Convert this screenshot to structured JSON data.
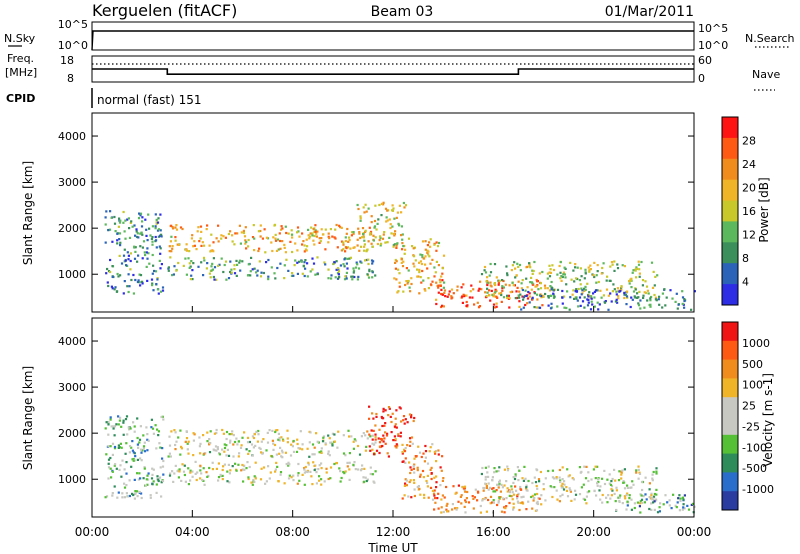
{
  "header": {
    "station": "Kerguelen (fitACF)",
    "beam": "Beam 03",
    "date": "01/Mar/2011"
  },
  "strips": {
    "nsky_label": "N.Sky",
    "nsky_tick_top": "10^5",
    "nsky_tick_bottom": "10^0",
    "nsearch_label": "N.Search",
    "nsearch_tick_top": "10^5",
    "nsearch_tick_bottom": "10^0",
    "freq_label_1": "Freq.",
    "freq_label_2": "[MHz]",
    "freq_tick_top": "18",
    "freq_tick_bottom": "8",
    "nave_label": "Nave",
    "nave_tick_top": "60",
    "nave_tick_bottom": "0",
    "cpid_label": "CPID",
    "cpid_value": "normal (fast) 151"
  },
  "x_axis": {
    "label": "Time UT",
    "ticks": [
      "00:00",
      "04:00",
      "08:00",
      "12:00",
      "16:00",
      "20:00",
      "00:00"
    ]
  },
  "chart_data": [
    {
      "type": "heatmap",
      "name": "power",
      "ylabel": "Slant Range [km]",
      "yticks": [
        "1000",
        "2000",
        "3000",
        "4000"
      ],
      "ylim": [
        180,
        4500
      ],
      "xlim": [
        "00:00",
        "24:00"
      ],
      "colorbar": {
        "label": "Power [dB]",
        "ticks": [
          "4",
          "8",
          "12",
          "16",
          "20",
          "24",
          "28"
        ],
        "colors": [
          "#2d2de6",
          "#2a63b8",
          "#3b8f5a",
          "#5cb85c",
          "#c8c82a",
          "#f0b428",
          "#f08c1e",
          "#ff5a14",
          "#ff1414"
        ]
      },
      "bands": [
        {
          "t0": 0.5,
          "t1": 2.8,
          "r0": 600,
          "r1": 2400,
          "level": 0.25
        },
        {
          "t0": 3.0,
          "t1": 11.3,
          "r0": 1500,
          "r1": 2100,
          "level": 0.65
        },
        {
          "t0": 3.0,
          "t1": 11.3,
          "r0": 900,
          "r1": 1400,
          "level": 0.3
        },
        {
          "t0": 10.5,
          "t1": 12.5,
          "r0": 1600,
          "r1": 2600,
          "level": 0.55
        },
        {
          "t0": 12.0,
          "t1": 14.0,
          "r0": 600,
          "r1": 1800,
          "level": 0.6
        },
        {
          "t0": 13.5,
          "t1": 18.0,
          "r0": 300,
          "r1": 900,
          "level": 0.85
        },
        {
          "t0": 15.5,
          "t1": 22.5,
          "r0": 500,
          "r1": 1300,
          "level": 0.45
        },
        {
          "t0": 17.0,
          "t1": 24.0,
          "r0": 250,
          "r1": 700,
          "level": 0.2
        }
      ]
    },
    {
      "type": "heatmap",
      "name": "velocity",
      "ylabel": "Slant Range [km]",
      "yticks": [
        "1000",
        "2000",
        "3000",
        "4000"
      ],
      "ylim": [
        180,
        4500
      ],
      "xlim": [
        "00:00",
        "24:00"
      ],
      "colorbar": {
        "label": "Velocity [m s-1]",
        "ticks": [
          "1000",
          "500",
          "100",
          "25",
          "-25",
          "-100",
          "-500",
          "-1000"
        ],
        "colors": [
          "#2a3ca0",
          "#2a6ecc",
          "#2d8c5a",
          "#55c036",
          "#c8c8c3",
          "#c8c8c3",
          "#f0b428",
          "#f08c1e",
          "#ff5a14",
          "#f01414"
        ]
      },
      "bands": [
        {
          "t0": 0.5,
          "t1": 2.8,
          "r0": 600,
          "r1": 2400,
          "level": 0.35
        },
        {
          "t0": 3.0,
          "t1": 11.3,
          "r0": 1500,
          "r1": 2100,
          "level": 0.5
        },
        {
          "t0": 3.0,
          "t1": 11.3,
          "r0": 900,
          "r1": 1400,
          "level": 0.5
        },
        {
          "t0": 11.0,
          "t1": 12.8,
          "r0": 1500,
          "r1": 2600,
          "level": 0.9
        },
        {
          "t0": 12.3,
          "t1": 14.0,
          "r0": 600,
          "r1": 1800,
          "level": 0.75
        },
        {
          "t0": 13.5,
          "t1": 18.0,
          "r0": 300,
          "r1": 900,
          "level": 0.7
        },
        {
          "t0": 15.5,
          "t1": 22.5,
          "r0": 500,
          "r1": 1300,
          "level": 0.5
        },
        {
          "t0": 20.5,
          "t1": 24.0,
          "r0": 300,
          "r1": 700,
          "level": 0.3
        }
      ]
    }
  ],
  "freq_series": {
    "values_mhz": [
      {
        "t": 0,
        "v": 13
      },
      {
        "t": 3.0,
        "v": 13
      },
      {
        "t": 3.0,
        "v": 11
      },
      {
        "t": 17.0,
        "v": 11
      },
      {
        "t": 17.0,
        "v": 13
      },
      {
        "t": 24,
        "v": 13
      }
    ],
    "ylim": [
      8,
      18
    ]
  }
}
